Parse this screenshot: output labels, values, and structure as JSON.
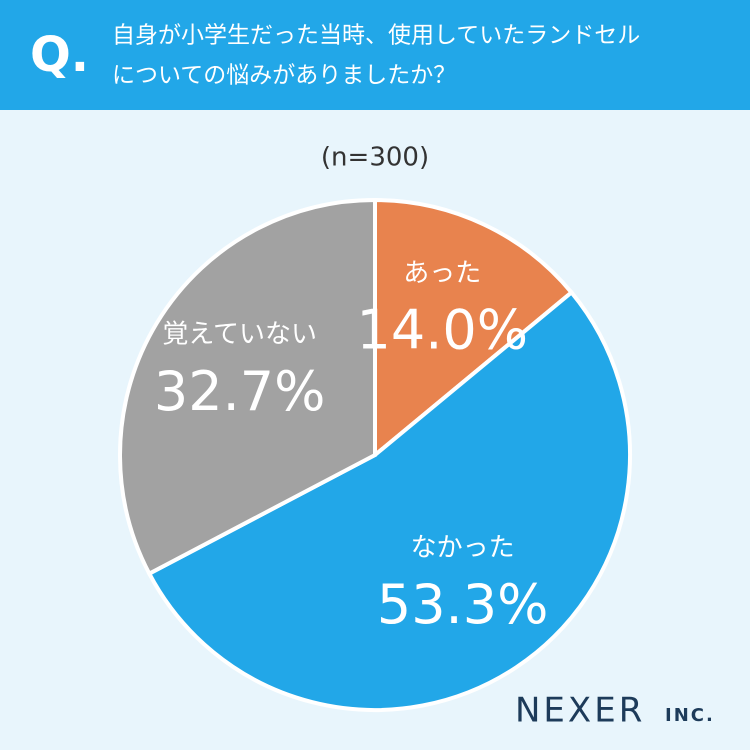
{
  "chart_data": {
    "type": "pie",
    "question_mark": "Q.",
    "title": [
      "自身が小学生だった当時、使用していたランドセル",
      "についての悩みがありましたか？"
    ],
    "subtitle": "(n=300)",
    "categories": [
      "あった",
      "なかった",
      "覚えていない"
    ],
    "values": [
      14.0,
      53.3,
      32.7
    ],
    "value_labels": [
      "14.0%",
      "53.3%",
      "32.7%"
    ],
    "colors": [
      "#E8834E",
      "#22A7E8",
      "#A2A2A2"
    ],
    "brand": "NEXER",
    "brand_suffix": "INC."
  }
}
